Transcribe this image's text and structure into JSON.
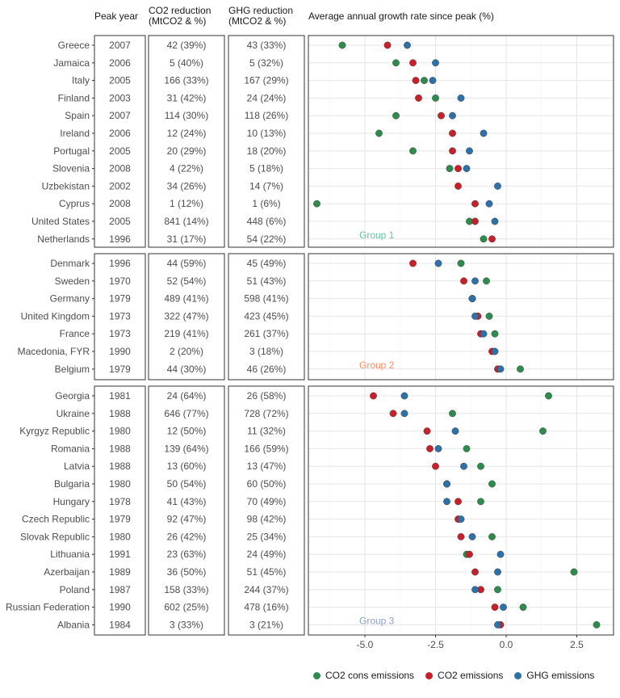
{
  "headers": {
    "peak_year": "Peak year",
    "co2_reduction_line1": "CO2 reduction",
    "co2_reduction_line2": "(MtCO2 & %)",
    "ghg_reduction_line1": "GHG reduction",
    "ghg_reduction_line2": "(MtCO2 & %)",
    "growth_rate": "Average annual growth rate since peak (%)"
  },
  "colors": {
    "co2_cons": "#2e8b4d",
    "co2": "#c8202a",
    "ghg": "#2e70a8",
    "group1": "#66c2a5",
    "group2": "#fc8d62",
    "group3": "#8da0cb"
  },
  "chart_data": {
    "type": "scatter",
    "xlim": [
      -7.0,
      3.8
    ],
    "x_ticks": [
      -5.0,
      -2.5,
      0.0,
      2.5
    ],
    "x_tick_labels": [
      "-5.0",
      "-2.5",
      "0.0",
      "2.5"
    ],
    "grid": true,
    "legend_position": "bottom",
    "series": [
      {
        "key": "co2_cons",
        "name": "CO2 cons emissions"
      },
      {
        "key": "co2",
        "name": "CO2 emissions"
      },
      {
        "key": "ghg",
        "name": "GHG emissions"
      }
    ],
    "groups": [
      {
        "label": "Group 1",
        "rows": [
          {
            "country": "Greece",
            "peak": "2007",
            "co2_red": "42 (39%)",
            "ghg_red": "43 (33%)",
            "co2_cons": -5.8,
            "co2": -4.2,
            "ghg": -3.5
          },
          {
            "country": "Jamaica",
            "peak": "2006",
            "co2_red": "5 (40%)",
            "ghg_red": "5 (32%)",
            "co2_cons": -3.9,
            "co2": -3.3,
            "ghg": -2.5
          },
          {
            "country": "Italy",
            "peak": "2005",
            "co2_red": "166 (33%)",
            "ghg_red": "167 (29%)",
            "co2_cons": -2.9,
            "co2": -3.2,
            "ghg": -2.6
          },
          {
            "country": "Finland",
            "peak": "2003",
            "co2_red": "31 (42%)",
            "ghg_red": "24 (24%)",
            "co2_cons": -2.5,
            "co2": -3.1,
            "ghg": -1.6
          },
          {
            "country": "Spain",
            "peak": "2007",
            "co2_red": "114 (30%)",
            "ghg_red": "118 (26%)",
            "co2_cons": -3.9,
            "co2": -2.3,
            "ghg": -1.9
          },
          {
            "country": "Ireland",
            "peak": "2006",
            "co2_red": "12 (24%)",
            "ghg_red": "10 (13%)",
            "co2_cons": -4.5,
            "co2": -1.9,
            "ghg": -0.8
          },
          {
            "country": "Portugal",
            "peak": "2005",
            "co2_red": "20 (29%)",
            "ghg_red": "18 (20%)",
            "co2_cons": -3.3,
            "co2": -1.9,
            "ghg": -1.3
          },
          {
            "country": "Slovenia",
            "peak": "2008",
            "co2_red": "4 (22%)",
            "ghg_red": "5 (18%)",
            "co2_cons": -2.0,
            "co2": -1.7,
            "ghg": -1.4
          },
          {
            "country": "Uzbekistan",
            "peak": "2002",
            "co2_red": "34 (26%)",
            "ghg_red": "14 (7%)",
            "co2_cons": null,
            "co2": -1.7,
            "ghg": -0.3
          },
          {
            "country": "Cyprus",
            "peak": "2008",
            "co2_red": "1 (12%)",
            "ghg_red": "1 (6%)",
            "co2_cons": -6.7,
            "co2": -1.1,
            "ghg": -0.6
          },
          {
            "country": "United States",
            "peak": "2005",
            "co2_red": "841 (14%)",
            "ghg_red": "448 (6%)",
            "co2_cons": -1.3,
            "co2": -1.1,
            "ghg": -0.4
          },
          {
            "country": "Netherlands",
            "peak": "1996",
            "co2_red": "31 (17%)",
            "ghg_red": "54 (22%)",
            "co2_cons": -0.8,
            "co2": -0.5,
            "ghg": null
          }
        ]
      },
      {
        "label": "Group 2",
        "rows": [
          {
            "country": "Denmark",
            "peak": "1996",
            "co2_red": "44 (59%)",
            "ghg_red": "45 (49%)",
            "co2_cons": -1.6,
            "co2": -3.3,
            "ghg": -2.4
          },
          {
            "country": "Sweden",
            "peak": "1970",
            "co2_red": "52 (54%)",
            "ghg_red": "51 (43%)",
            "co2_cons": -0.7,
            "co2": -1.5,
            "ghg": -1.1
          },
          {
            "country": "Germany",
            "peak": "1979",
            "co2_red": "489 (41%)",
            "ghg_red": "598 (41%)",
            "co2_cons": -1.2,
            "co2": -1.2,
            "ghg": -1.2
          },
          {
            "country": "United Kingdom",
            "peak": "1973",
            "co2_red": "322 (47%)",
            "ghg_red": "423 (45%)",
            "co2_cons": -0.6,
            "co2": -1.0,
            "ghg": -1.1
          },
          {
            "country": "France",
            "peak": "1973",
            "co2_red": "219 (41%)",
            "ghg_red": "261 (37%)",
            "co2_cons": -0.4,
            "co2": -0.9,
            "ghg": -0.8
          },
          {
            "country": "Macedonia, FYR",
            "peak": "1990",
            "co2_red": "2 (20%)",
            "ghg_red": "3 (18%)",
            "co2_cons": null,
            "co2": -0.5,
            "ghg": -0.4
          },
          {
            "country": "Belgium",
            "peak": "1979",
            "co2_red": "44 (30%)",
            "ghg_red": "46 (26%)",
            "co2_cons": 0.5,
            "co2": -0.3,
            "ghg": -0.2
          }
        ]
      },
      {
        "label": "Group 3",
        "rows": [
          {
            "country": "Georgia",
            "peak": "1981",
            "co2_red": "24 (64%)",
            "ghg_red": "26 (58%)",
            "co2_cons": 1.5,
            "co2": -4.7,
            "ghg": -3.6
          },
          {
            "country": "Ukraine",
            "peak": "1988",
            "co2_red": "646 (77%)",
            "ghg_red": "728 (72%)",
            "co2_cons": -1.9,
            "co2": -4.0,
            "ghg": -3.6
          },
          {
            "country": "Kyrgyz Republic",
            "peak": "1980",
            "co2_red": "12 (50%)",
            "ghg_red": "11 (32%)",
            "co2_cons": 1.3,
            "co2": -2.8,
            "ghg": -1.8
          },
          {
            "country": "Romania",
            "peak": "1988",
            "co2_red": "139 (64%)",
            "ghg_red": "166 (59%)",
            "co2_cons": -1.4,
            "co2": -2.7,
            "ghg": -2.4
          },
          {
            "country": "Latvia",
            "peak": "1988",
            "co2_red": "13 (60%)",
            "ghg_red": "13 (47%)",
            "co2_cons": -0.9,
            "co2": -2.5,
            "ghg": -1.5
          },
          {
            "country": "Bulgaria",
            "peak": "1980",
            "co2_red": "50 (54%)",
            "ghg_red": "60 (50%)",
            "co2_cons": -0.5,
            "co2": -2.1,
            "ghg": -2.1
          },
          {
            "country": "Hungary",
            "peak": "1978",
            "co2_red": "41 (43%)",
            "ghg_red": "70 (49%)",
            "co2_cons": -0.9,
            "co2": -1.7,
            "ghg": -2.1
          },
          {
            "country": "Czech Republic",
            "peak": "1979",
            "co2_red": "92 (47%)",
            "ghg_red": "98 (42%)",
            "co2_cons": null,
            "co2": -1.7,
            "ghg": -1.6
          },
          {
            "country": "Slovak Republic",
            "peak": "1980",
            "co2_red": "26 (42%)",
            "ghg_red": "25 (34%)",
            "co2_cons": -0.5,
            "co2": -1.6,
            "ghg": -1.2
          },
          {
            "country": "Lithuania",
            "peak": "1991",
            "co2_red": "23 (63%)",
            "ghg_red": "24 (49%)",
            "co2_cons": -1.4,
            "co2": -1.3,
            "ghg": -0.2
          },
          {
            "country": "Azerbaijan",
            "peak": "1989",
            "co2_red": "36 (50%)",
            "ghg_red": "51 (45%)",
            "co2_cons": 2.4,
            "co2": -1.1,
            "ghg": -0.3
          },
          {
            "country": "Poland",
            "peak": "1987",
            "co2_red": "158 (33%)",
            "ghg_red": "244 (37%)",
            "co2_cons": -0.3,
            "co2": -0.9,
            "ghg": -1.1
          },
          {
            "country": "Russian Federation",
            "peak": "1990",
            "co2_red": "602 (25%)",
            "ghg_red": "478 (16%)",
            "co2_cons": 0.6,
            "co2": -0.4,
            "ghg": -0.1
          },
          {
            "country": "Albania",
            "peak": "1984",
            "co2_red": "3 (33%)",
            "ghg_red": "3 (21%)",
            "co2_cons": 3.2,
            "co2": -0.2,
            "ghg": -0.3
          }
        ]
      }
    ]
  }
}
